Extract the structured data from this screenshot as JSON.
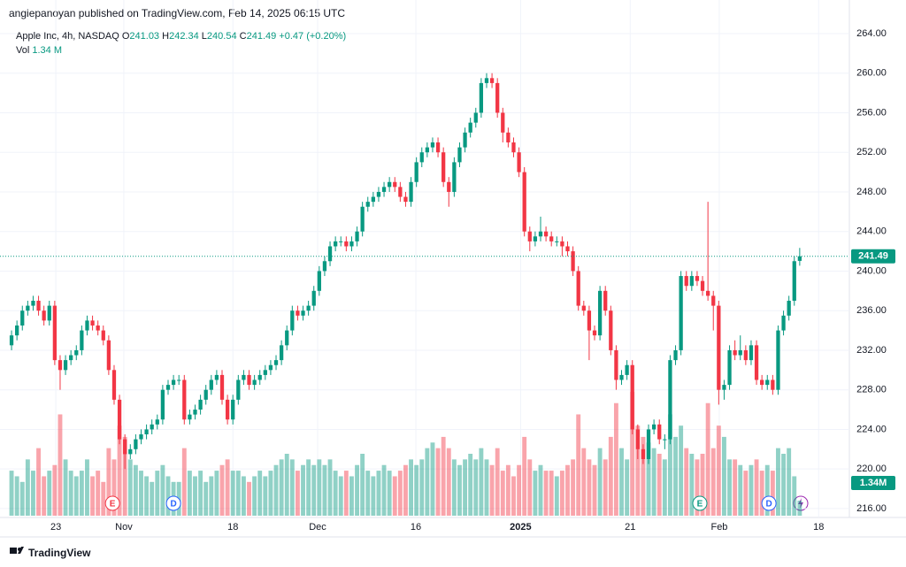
{
  "header": {
    "text": "angiepanoyan published on TradingView.com, Feb 14, 2025 06:15 UTC"
  },
  "chart_data": {
    "type": "candlestick",
    "symbol": "Apple Inc, 4h, NASDAQ",
    "legend_fields": [
      {
        "label": "O",
        "value": "241.03"
      },
      {
        "label": "H",
        "value": "242.34"
      },
      {
        "label": "L",
        "value": "240.54"
      },
      {
        "label": "C",
        "value": "241.49"
      }
    ],
    "change": "+0.47 (+0.20%)",
    "volume_name": "Vol",
    "volume_legend": "1.34 M",
    "volume_label": "1.34M",
    "up_color": "#089981",
    "down_color": "#f23645",
    "open": [
      232.5,
      233.5,
      234.5,
      236,
      236.5,
      237,
      236,
      235,
      236.5,
      231,
      230,
      231,
      231.5,
      232,
      234,
      235,
      234.5,
      234,
      233,
      230,
      227,
      223,
      221.5,
      222,
      223,
      223.5,
      224,
      224.5,
      225,
      228,
      228.5,
      229,
      229,
      225,
      225.5,
      226,
      227,
      228,
      229,
      229.5,
      227,
      225,
      227,
      229,
      229.5,
      228.5,
      229,
      229.5,
      230,
      230.5,
      231,
      232.5,
      234,
      236,
      235.5,
      236,
      236.5,
      238,
      240,
      241,
      242.5,
      243,
      243,
      242.5,
      243,
      244,
      246.5,
      247,
      247.5,
      248,
      248.5,
      249,
      248.5,
      247.5,
      247,
      249,
      251,
      252,
      252.5,
      253,
      252,
      249,
      248,
      251,
      252.5,
      254,
      255,
      256,
      259,
      259.5,
      259,
      256,
      254,
      253,
      252,
      250,
      244,
      243,
      243.5,
      244,
      243.5,
      243,
      243,
      242.5,
      242,
      240,
      236.5,
      236,
      234,
      233.5,
      238,
      236,
      232,
      229,
      229.5,
      230.5,
      224,
      222,
      221,
      224,
      224.5,
      223,
      223,
      231,
      232,
      239.5,
      238.5,
      239.5,
      239,
      238,
      237.5,
      236.5,
      228,
      228.5,
      232,
      231.5,
      232,
      231,
      232.5,
      229,
      228.5,
      229,
      228,
      234,
      235.5,
      237,
      241.03
    ],
    "high": [
      234,
      235,
      236.5,
      237,
      237.5,
      237.5,
      236.5,
      237,
      237,
      231.5,
      231.5,
      232,
      232.5,
      234.5,
      235.5,
      235.5,
      235,
      234.5,
      233.5,
      230.5,
      227.5,
      223.5,
      222.5,
      223.5,
      224,
      224.5,
      225,
      225.5,
      228.5,
      229,
      229.5,
      229.5,
      229.5,
      226,
      226.5,
      227.5,
      228.5,
      229.5,
      230,
      230,
      227.5,
      227.5,
      229.5,
      230,
      230,
      229.5,
      230,
      230.5,
      231,
      231.5,
      233,
      234.5,
      236.5,
      236.5,
      236.5,
      237,
      238.5,
      240.5,
      241.5,
      243,
      243.5,
      243.5,
      243.5,
      243.5,
      244.5,
      247,
      247.5,
      248,
      248.5,
      249,
      249.5,
      249.5,
      249,
      248,
      249.5,
      251.5,
      252.5,
      253,
      253.5,
      253.5,
      252.5,
      249.5,
      251.5,
      253,
      254.5,
      255.5,
      256.5,
      259.5,
      260,
      260,
      259.5,
      256.5,
      254.5,
      253.5,
      252.5,
      250.5,
      244.5,
      244,
      245.5,
      244.5,
      244,
      243.5,
      243.5,
      243,
      242.5,
      240.5,
      237,
      236.5,
      234.5,
      238.5,
      238.5,
      236.5,
      232.5,
      230,
      231,
      231,
      224.5,
      222.5,
      224.5,
      225,
      225,
      223.5,
      231.5,
      232.5,
      240,
      240,
      240,
      240,
      239.5,
      247,
      238,
      237,
      229,
      232.5,
      233,
      233.5,
      232.5,
      233,
      233,
      229.5,
      229.5,
      229.5,
      234.5,
      236,
      237.5,
      241.5,
      242.34
    ],
    "low": [
      232,
      233,
      234,
      235.5,
      236,
      235.5,
      234.5,
      234.5,
      230.5,
      228,
      229.5,
      230.5,
      231,
      231.5,
      233.5,
      234,
      233.5,
      232.5,
      229.5,
      226.5,
      222.5,
      220,
      221,
      221.5,
      222.5,
      223,
      223.5,
      224,
      224.5,
      227.5,
      228,
      228.5,
      224.5,
      224.5,
      225,
      225.5,
      226.5,
      227.5,
      228.5,
      226.5,
      224.5,
      224.5,
      226.5,
      228.5,
      228,
      228,
      228.5,
      229,
      229.5,
      230,
      230.5,
      232,
      233.5,
      235,
      235,
      235.5,
      236,
      237.5,
      239.5,
      240.5,
      242,
      242.5,
      242,
      242,
      242.5,
      243.5,
      246,
      246.5,
      247,
      247.5,
      248,
      248,
      247,
      246.5,
      246.5,
      248.5,
      250.5,
      251.5,
      252,
      251.5,
      248.5,
      246.5,
      247.5,
      250.5,
      252,
      253.5,
      254.5,
      255.5,
      258.5,
      258.5,
      255.5,
      253,
      252.5,
      251.5,
      249.5,
      243.5,
      242,
      242.5,
      243,
      243,
      242.5,
      242.5,
      241.5,
      241.5,
      239.5,
      236,
      235.5,
      231,
      233,
      233,
      235.5,
      231.5,
      228,
      228.5,
      229,
      223.5,
      221,
      220.5,
      220.5,
      223.5,
      222.5,
      222,
      222.5,
      230.5,
      231.5,
      238,
      238,
      238.5,
      237.5,
      237,
      234,
      226.5,
      227,
      228,
      231,
      231,
      230.5,
      230.5,
      228.5,
      228,
      228,
      227.5,
      227.5,
      233.5,
      235,
      236.5,
      240.54
    ],
    "close": [
      233.5,
      234.5,
      236,
      236.5,
      237,
      236,
      235,
      236.5,
      231,
      230,
      231,
      231.5,
      232,
      234,
      235,
      234.5,
      234,
      233,
      230,
      227,
      223,
      221.5,
      222,
      223,
      223.5,
      224,
      224.5,
      225,
      228,
      228.5,
      229,
      229,
      225,
      225.5,
      226,
      227,
      228,
      229,
      229.5,
      227,
      225,
      227,
      229,
      229.5,
      228.5,
      229,
      229.5,
      230,
      230.5,
      231,
      232.5,
      234,
      236,
      235.5,
      236,
      236.5,
      238,
      240,
      241,
      242.5,
      243,
      243,
      242.5,
      243,
      244,
      246.5,
      247,
      247.5,
      248,
      248.5,
      249,
      248.5,
      247.5,
      247,
      249,
      251,
      252,
      252.5,
      253,
      252,
      249,
      248,
      251,
      252.5,
      254,
      255,
      256,
      259,
      259.5,
      259,
      256,
      254,
      253,
      252,
      250,
      244,
      243,
      243.5,
      244,
      243.5,
      243,
      243,
      242.5,
      242,
      240,
      236.5,
      236,
      234,
      233.5,
      238,
      236,
      232,
      229,
      229.5,
      230.5,
      224,
      222,
      221,
      224,
      224.5,
      223,
      223,
      231,
      232,
      239.5,
      238.5,
      239.5,
      239,
      238,
      237.5,
      236.5,
      228,
      228.5,
      232,
      231.5,
      232,
      231,
      232.5,
      229,
      228.5,
      229,
      228,
      234,
      235.5,
      237,
      241,
      241.49
    ],
    "volume": [
      4,
      3.5,
      3,
      5,
      4,
      6,
      3.5,
      4,
      4.5,
      9,
      5,
      4,
      3.5,
      4,
      5,
      3.5,
      4,
      3,
      6,
      5,
      8,
      7,
      5,
      4.5,
      4,
      3.5,
      3,
      4,
      4.5,
      3.5,
      3,
      3,
      6,
      4,
      3.5,
      4,
      3,
      3.5,
      4,
      4.5,
      5,
      4,
      4,
      3.5,
      3,
      3.5,
      4,
      3.5,
      4,
      4.5,
      5,
      5.5,
      5,
      4,
      4.5,
      5,
      4.5,
      5,
      4.5,
      5,
      4,
      3.5,
      4,
      3.5,
      4.5,
      5.5,
      4,
      3.5,
      4,
      4.5,
      4,
      3.5,
      4,
      4.5,
      5,
      4.5,
      5,
      6,
      6.5,
      6,
      7,
      6,
      5,
      4.5,
      5,
      5.5,
      5,
      6,
      5,
      4.5,
      6,
      4,
      4.5,
      3.5,
      4.5,
      7,
      5,
      4,
      4.5,
      4,
      4,
      3.5,
      4,
      4.5,
      5,
      9,
      6,
      5,
      4.5,
      6,
      5,
      7,
      10,
      6,
      5,
      11,
      8,
      7,
      6.5,
      6,
      5.5,
      5,
      9,
      7,
      8,
      6,
      5.5,
      5,
      5.5,
      10,
      6,
      8,
      7,
      5,
      5,
      4.5,
      4,
      4.5,
      5,
      4,
      4.5,
      4,
      6,
      5.5,
      6,
      3.5,
      1.34
    ],
    "xlim": [
      -0.5,
      155.2
    ],
    "xticks": [
      {
        "value": 8.2,
        "label": "23"
      },
      {
        "value": 20.8,
        "label": "Nov"
      },
      {
        "value": 41,
        "label": "18"
      },
      {
        "value": 56.7,
        "label": "Dec"
      },
      {
        "value": 74.9,
        "label": "16"
      },
      {
        "value": 94.3,
        "label": "2025"
      },
      {
        "value": 114.6,
        "label": "21"
      },
      {
        "value": 131.1,
        "label": "Feb"
      },
      {
        "value": 149.5,
        "label": "18"
      }
    ],
    "ylim": [
      215.1,
      266.5
    ],
    "yticks": [
      {
        "value": 216,
        "label": "216.00"
      },
      {
        "value": 220,
        "label": "220.00"
      },
      {
        "value": 224,
        "label": "224.00"
      },
      {
        "value": 228,
        "label": "228.00"
      },
      {
        "value": 232,
        "label": "232.00"
      },
      {
        "value": 236,
        "label": "236.00"
      },
      {
        "value": 240,
        "label": "240.00"
      },
      {
        "value": 244,
        "label": "244.00"
      },
      {
        "value": 248,
        "label": "248.00"
      },
      {
        "value": 252,
        "label": "252.00"
      },
      {
        "value": 256,
        "label": "256.00"
      },
      {
        "value": 260,
        "label": "260.00"
      },
      {
        "value": 264,
        "label": "264.00"
      }
    ],
    "grid": true,
    "events": [
      {
        "index": 18.7,
        "label": "E",
        "color": "#f23645"
      },
      {
        "index": 30,
        "label": "D",
        "color": "#2962ff"
      },
      {
        "index": 127.5,
        "label": "E",
        "color": "#089981"
      },
      {
        "index": 140.3,
        "label": "D",
        "color": "#2962ff"
      }
    ]
  },
  "footer": {
    "brand": "TradingView"
  }
}
